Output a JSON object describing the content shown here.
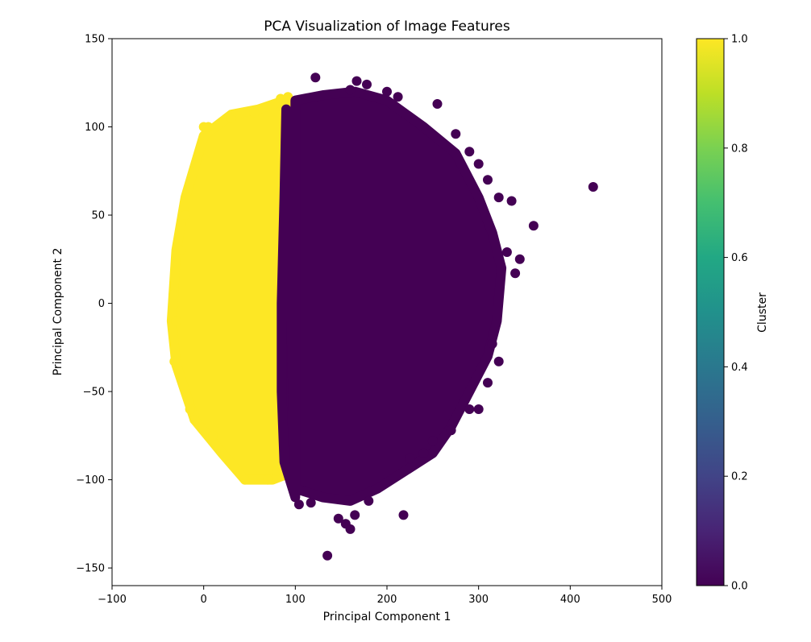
{
  "chart_data": {
    "type": "scatter",
    "title": "PCA Visualization of Image Features",
    "xlabel": "Principal Component 1",
    "ylabel": "Principal Component 2",
    "xlim": [
      -100,
      500
    ],
    "ylim": [
      -160,
      150
    ],
    "xticks": [
      -100,
      0,
      100,
      200,
      300,
      400,
      500
    ],
    "yticks": [
      -150,
      -100,
      -50,
      0,
      50,
      100,
      150
    ],
    "xtick_labels": [
      "−100",
      "0",
      "100",
      "200",
      "300",
      "400",
      "500"
    ],
    "ytick_labels": [
      "−150",
      "−100",
      "−50",
      "0",
      "50",
      "100",
      "150"
    ],
    "grid": false,
    "colorbar": {
      "label": "Cluster",
      "range": [
        0.0,
        1.0
      ],
      "ticks": [
        0.0,
        0.2,
        0.4,
        0.6,
        0.8,
        1.0
      ],
      "tick_labels": [
        "0.0",
        "0.2",
        "0.4",
        "0.6",
        "0.8",
        "1.0"
      ],
      "colormap": "viridis"
    },
    "series": [
      {
        "cluster": 1,
        "color": "#fde725",
        "region": {
          "left_edge": [
            [
              -35,
              -10
            ],
            [
              -30,
              30
            ],
            [
              -20,
              60
            ],
            [
              0,
              95
            ],
            [
              30,
              107
            ],
            [
              60,
              110
            ],
            [
              88,
              115
            ]
          ],
          "right_edge": [
            [
              90,
              115
            ],
            [
              88,
              60
            ],
            [
              85,
              0
            ],
            [
              85,
              -50
            ],
            [
              88,
              -85
            ],
            [
              90,
              -95
            ]
          ],
          "bottom_edge": [
            [
              90,
              -97
            ],
            [
              75,
              -100
            ],
            [
              45,
              -100
            ],
            [
              20,
              -85
            ],
            [
              -10,
              -66
            ],
            [
              -30,
              -35
            ]
          ]
        },
        "points": [
          [
            -30,
            -10
          ],
          [
            -33,
            5
          ],
          [
            -32,
            -33
          ],
          [
            -20,
            50
          ],
          [
            -10,
            -66
          ],
          [
            0,
            100
          ],
          [
            5,
            100
          ],
          [
            45,
            -100
          ],
          [
            70,
            -100
          ],
          [
            84,
            116
          ],
          [
            92,
            117
          ],
          [
            -25,
            30
          ],
          [
            -15,
            -60
          ],
          [
            10,
            -75
          ],
          [
            30,
            105
          ],
          [
            55,
            108
          ],
          [
            80,
            -95
          ],
          [
            86,
            -92
          ]
        ]
      },
      {
        "cluster": 0,
        "color": "#440154",
        "region": {
          "left_edge": [
            [
              90,
              110
            ],
            [
              88,
              60
            ],
            [
              85,
              0
            ],
            [
              85,
              -50
            ],
            [
              88,
              -90
            ],
            [
              100,
              -110
            ]
          ],
          "top_edge": [
            [
              100,
              115
            ],
            [
              130,
              118
            ],
            [
              165,
              120
            ],
            [
              200,
              115
            ],
            [
              240,
              100
            ],
            [
              275,
              85
            ],
            [
              300,
              60
            ],
            [
              315,
              40
            ],
            [
              325,
              20
            ]
          ],
          "right_edge": [
            [
              325,
              20
            ],
            [
              320,
              -10
            ],
            [
              310,
              -30
            ],
            [
              290,
              -50
            ],
            [
              270,
              -70
            ],
            [
              250,
              -85
            ],
            [
              220,
              -95
            ],
            [
              190,
              -105
            ],
            [
              160,
              -112
            ],
            [
              130,
              -110
            ],
            [
              100,
              -105
            ]
          ]
        },
        "points": [
          [
            122,
            128
          ],
          [
            167,
            126
          ],
          [
            178,
            124
          ],
          [
            160,
            121
          ],
          [
            200,
            120
          ],
          [
            212,
            117
          ],
          [
            255,
            113
          ],
          [
            275,
            96
          ],
          [
            290,
            86
          ],
          [
            300,
            79
          ],
          [
            310,
            70
          ],
          [
            322,
            60
          ],
          [
            336,
            58
          ],
          [
            360,
            44
          ],
          [
            345,
            25
          ],
          [
            331,
            29
          ],
          [
            340,
            17
          ],
          [
            322,
            -33
          ],
          [
            315,
            -23
          ],
          [
            310,
            -45
          ],
          [
            300,
            -60
          ],
          [
            290,
            -60
          ],
          [
            270,
            -72
          ],
          [
            250,
            -78
          ],
          [
            240,
            -85
          ],
          [
            225,
            -88
          ],
          [
            218,
            -120
          ],
          [
            180,
            -112
          ],
          [
            165,
            -120
          ],
          [
            155,
            -125
          ],
          [
            160,
            -128
          ],
          [
            135,
            -143
          ],
          [
            425,
            66
          ],
          [
            104,
            -114
          ],
          [
            117,
            -113
          ],
          [
            147,
            -122
          ]
        ]
      }
    ]
  }
}
